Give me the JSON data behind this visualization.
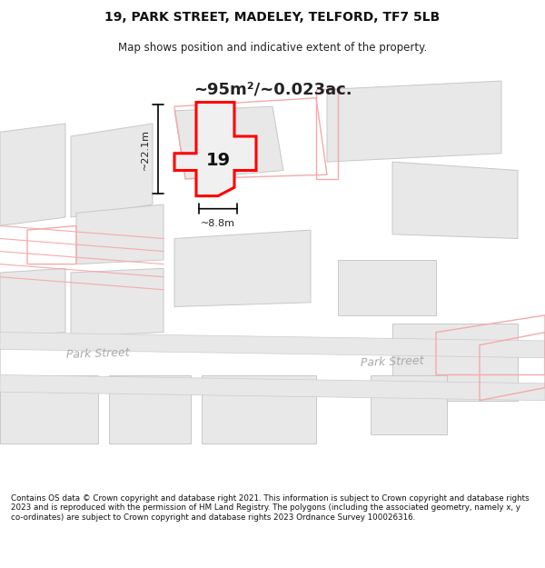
{
  "title_line1": "19, PARK STREET, MADELEY, TELFORD, TF7 5LB",
  "title_line2": "Map shows position and indicative extent of the property.",
  "area_text": "~95m²/~0.023ac.",
  "label_19": "19",
  "dim_height": "~22.1m",
  "dim_width": "~8.8m",
  "street_label1": "Park Street",
  "street_label2": "Park Street",
  "footer_text": "Contains OS data © Crown copyright and database right 2021. This information is subject to Crown copyright and database rights 2023 and is reproduced with the permission of HM Land Registry. The polygons (including the associated geometry, namely x, y co-ordinates) are subject to Crown copyright and database rights 2023 Ordnance Survey 100026316.",
  "bg_color": "#ffffff",
  "map_bg": "#ffffff",
  "building_fill": "#e8e8e8",
  "building_edge": "#c8c8c8",
  "highlight_fill": "#f0f0f0",
  "highlight_edge": "#ff0000",
  "other_poly_edge": "#f5aaaa",
  "road_fill": "#e0e0e0",
  "road_label_color": "#aaaaaa",
  "annotation_color": "#222222"
}
